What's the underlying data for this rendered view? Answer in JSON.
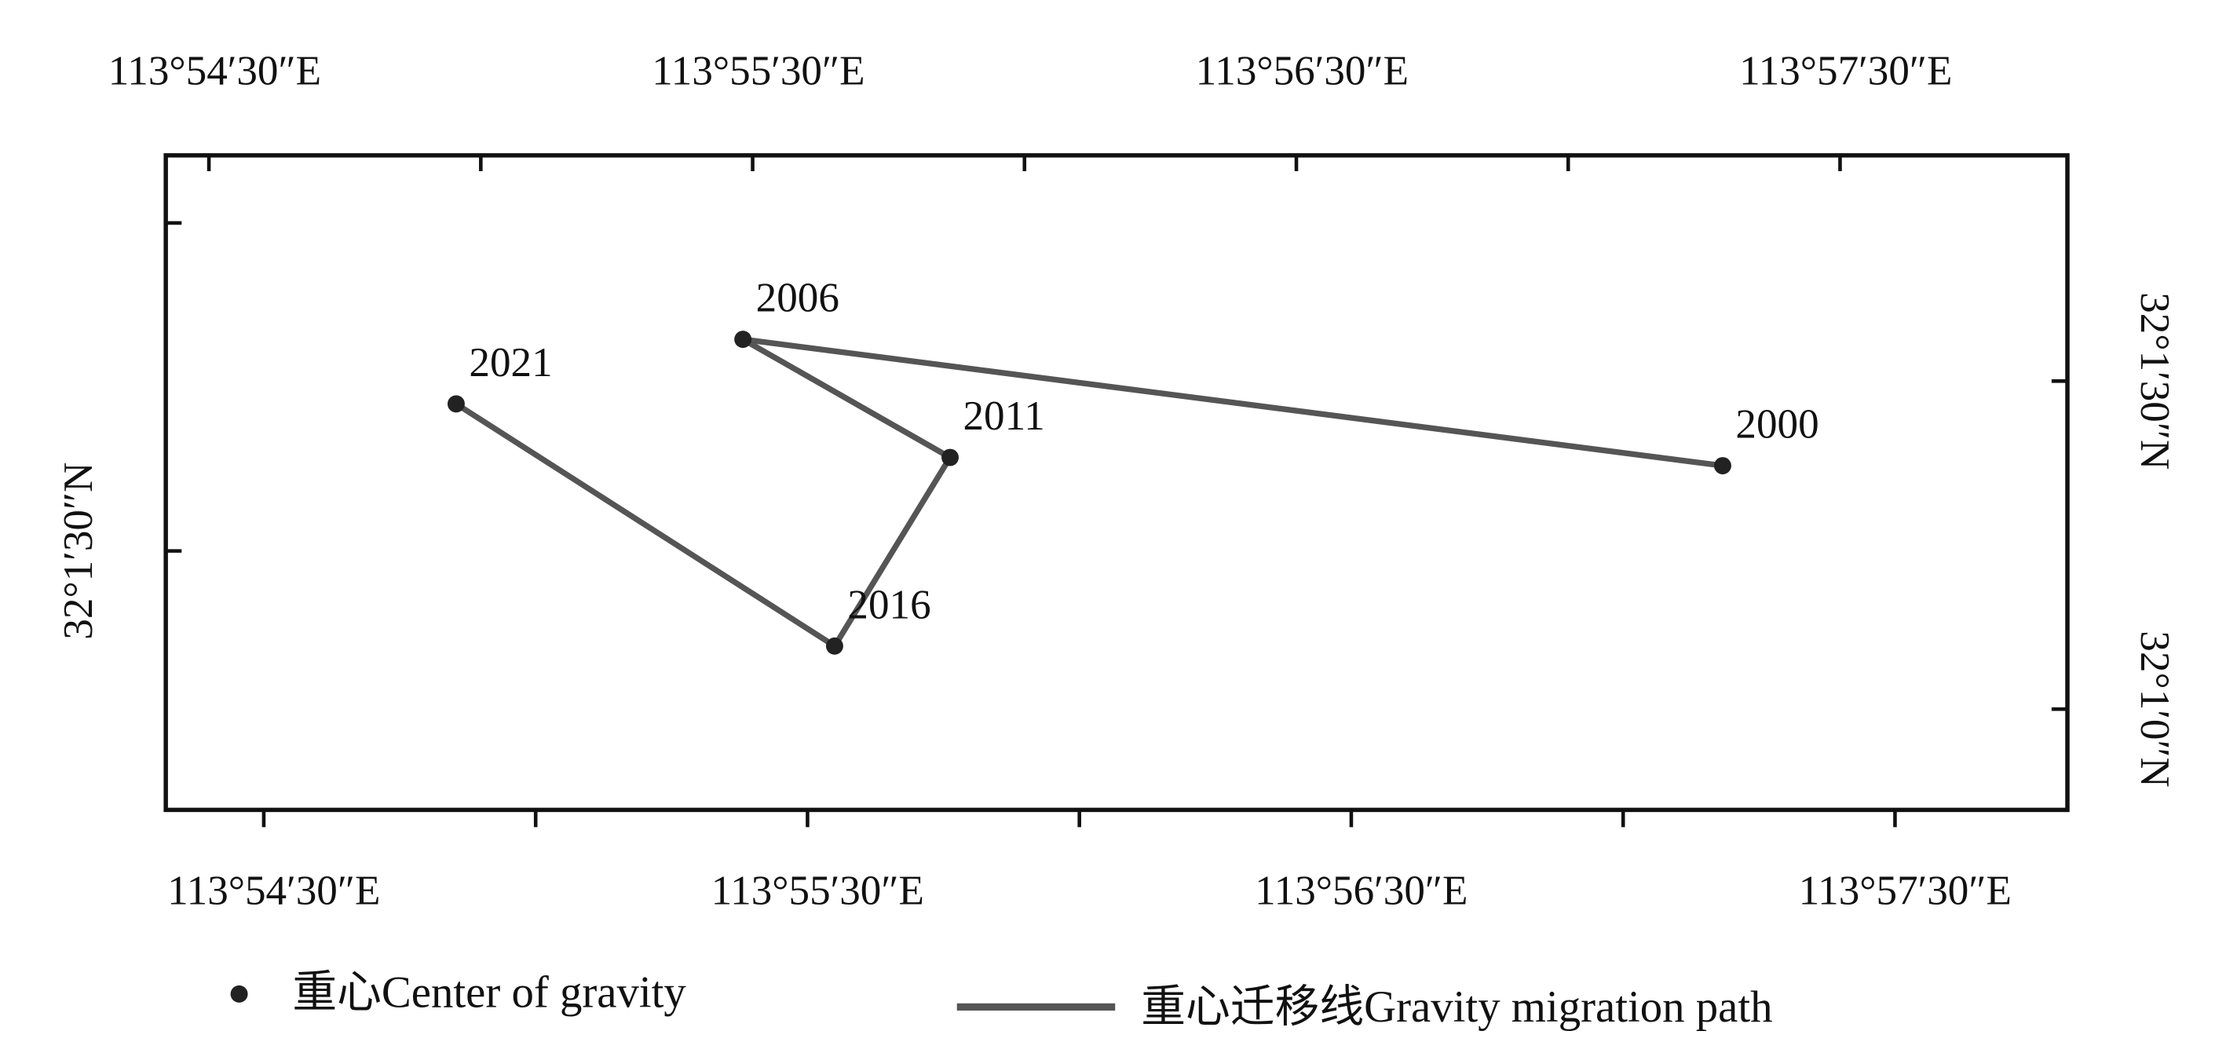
{
  "chart_data": {
    "type": "scatter",
    "x": [
      113.95305,
      113.92302,
      113.92937,
      113.92583,
      113.91423
    ],
    "values": [
      32.02285,
      32.02606,
      32.02306,
      32.01827,
      32.02442
    ],
    "labels": [
      "2000",
      "2006",
      "2011",
      "2016",
      "2021"
    ],
    "marker_name": "重心Center of gravity",
    "line_name": "重心迁移线Gravity migration path",
    "color": "#222222",
    "line_color": "#555555",
    "xlim": [
      113.90533,
      113.963617
    ],
    "xticks": [
      {
        "value": 113.908333,
        "label": "113°54′30″E"
      },
      {
        "value": 113.925,
        "label": "113°55′30″E"
      },
      {
        "value": 113.941667,
        "label": "113°56′30″E"
      },
      {
        "value": 113.958333,
        "label": "113°57′30″E"
      }
    ],
    "xminorticks": [
      113.916667,
      113.933333,
      113.95
    ],
    "x2lim": [
      113.907011,
      113.965302
    ],
    "x2ticks": [
      {
        "value": 113.908333,
        "label": "113°54′30″E"
      },
      {
        "value": 113.925,
        "label": "113°55′30″E"
      },
      {
        "value": 113.941667,
        "label": "113°56′30″E"
      },
      {
        "value": 113.958333,
        "label": "113°57′30″E"
      }
    ],
    "x2minorticks": [
      113.916667,
      113.933333,
      113.95
    ],
    "ylim": [
      32.014108,
      32.030733
    ],
    "yticks": [
      {
        "value": 32.025,
        "label": "32°1′30″N"
      },
      {
        "value": 32.016667,
        "label": "32°1′0″N"
      }
    ],
    "y2lim": [
      32.018421,
      32.03505
    ],
    "y2ticks": [
      {
        "value": 32.025,
        "label": "32°1′30″N"
      }
    ],
    "y2minorticks": [
      32.033333
    ]
  }
}
